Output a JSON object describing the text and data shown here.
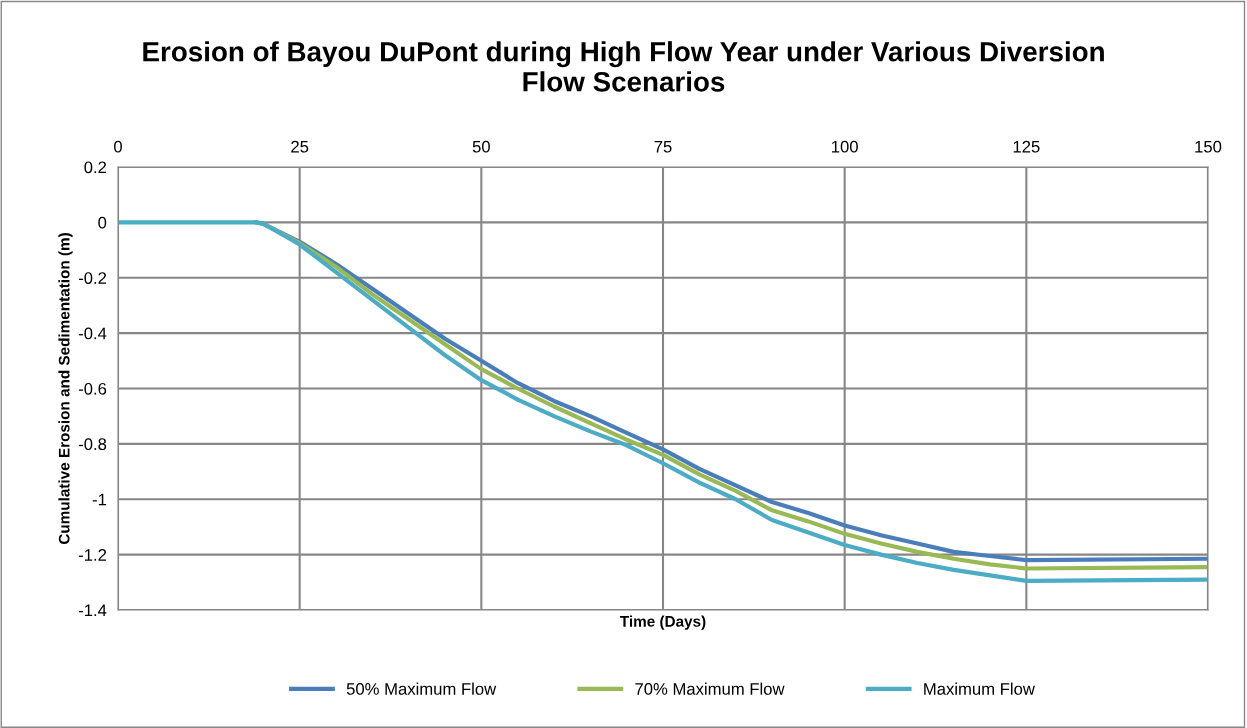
{
  "chart_data": {
    "type": "line",
    "title": "Erosion of Bayou DuPont during High Flow Year under Various Diversion Flow Scenarios",
    "xlabel": "Time (Days)",
    "ylabel": "Cumulative Erosion and Sedimentation (m)",
    "x": [
      0,
      5,
      10,
      15,
      19,
      20,
      25,
      30,
      35,
      40,
      45,
      50,
      55,
      60,
      65,
      70,
      75,
      80,
      85,
      90,
      95,
      100,
      105,
      110,
      115,
      120,
      125,
      150
    ],
    "series": [
      {
        "name": "50% Maximum Flow",
        "color": "#4a7ebb",
        "values": [
          null,
          null,
          null,
          null,
          0,
          -0.005,
          -0.07,
          -0.15,
          -0.24,
          -0.33,
          -0.42,
          -0.5,
          -0.58,
          -0.645,
          -0.7,
          -0.76,
          -0.82,
          -0.89,
          -0.95,
          -1.01,
          -1.05,
          -1.095,
          -1.13,
          -1.16,
          -1.19,
          -1.205,
          -1.22,
          -1.215
        ]
      },
      {
        "name": "70% Maximum Flow",
        "color": "#98b954",
        "values": [
          null,
          null,
          null,
          null,
          0,
          -0.005,
          -0.075,
          -0.16,
          -0.26,
          -0.35,
          -0.44,
          -0.53,
          -0.6,
          -0.665,
          -0.725,
          -0.785,
          -0.84,
          -0.91,
          -0.97,
          -1.04,
          -1.08,
          -1.125,
          -1.16,
          -1.19,
          -1.215,
          -1.235,
          -1.25,
          -1.245
        ]
      },
      {
        "name": "Maximum Flow",
        "color": "#4bacc6",
        "values": [
          0,
          0,
          0,
          0,
          0,
          -0.005,
          -0.08,
          -0.18,
          -0.28,
          -0.38,
          -0.48,
          -0.57,
          -0.64,
          -0.7,
          -0.755,
          -0.805,
          -0.87,
          -0.94,
          -1.0,
          -1.075,
          -1.12,
          -1.165,
          -1.2,
          -1.23,
          -1.255,
          -1.275,
          -1.295,
          -1.29
        ]
      }
    ],
    "xlim": [
      0,
      150
    ],
    "xticks": [
      0,
      25,
      50,
      75,
      100,
      125,
      150
    ],
    "ylim": [
      -1.4,
      0.2
    ],
    "yticks": [
      -1.4,
      -1.2,
      -1,
      -0.8,
      -0.6,
      -0.4,
      -0.2,
      0,
      0.2
    ],
    "grid": true,
    "legend": "bottom",
    "marker": "none",
    "line_style": "solid"
  }
}
